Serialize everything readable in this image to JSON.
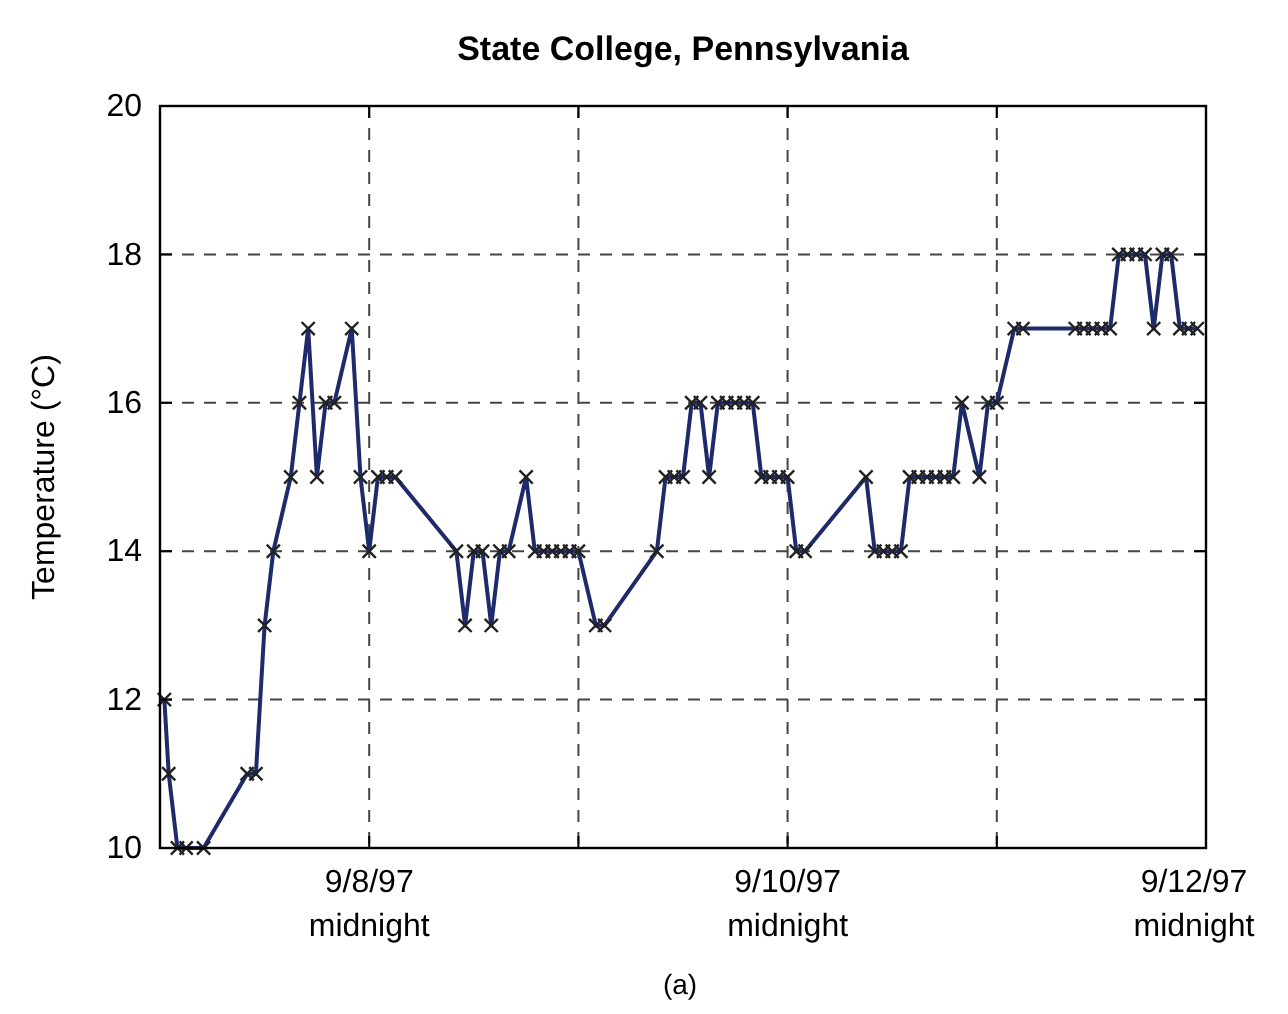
{
  "chart_data": {
    "type": "line",
    "title": "State College, Pennsylvania",
    "ylabel": "Temperature (°C)",
    "annotations": [
      "(a)"
    ],
    "xlim": [
      "1997-09-07T00:00",
      "1997-09-12T00:00"
    ],
    "xticks": [
      {
        "value": "1997-09-08T00:00",
        "label": "9/8/97\nmidnight"
      },
      {
        "value": "1997-09-09T00:00",
        "label": null
      },
      {
        "value": "1997-09-10T00:00",
        "label": "9/10/97\nmidnight"
      },
      {
        "value": "1997-09-11T00:00",
        "label": null
      },
      {
        "value": "1997-09-12T00:00",
        "label": "9/12/97\nmidnight"
      }
    ],
    "ylim": [
      10,
      20
    ],
    "yticks": [
      10,
      12,
      14,
      16,
      18,
      20
    ],
    "grid": true,
    "marker": "cross",
    "line_style": "solid",
    "series": [
      {
        "color": "#1f2a6b",
        "x": [
          "1997-09-07T00:30",
          "1997-09-07T01:00",
          "1997-09-07T02:00",
          "1997-09-07T03:00",
          "1997-09-07T05:00",
          "1997-09-07T10:00",
          "1997-09-07T11:00",
          "1997-09-07T12:00",
          "1997-09-07T13:00",
          "1997-09-07T15:00",
          "1997-09-07T16:00",
          "1997-09-07T17:00",
          "1997-09-07T18:00",
          "1997-09-07T19:00",
          "1997-09-07T20:00",
          "1997-09-07T22:00",
          "1997-09-07T23:00",
          "1997-09-08T00:00",
          "1997-09-08T01:00",
          "1997-09-08T02:00",
          "1997-09-08T03:00",
          "1997-09-08T10:00",
          "1997-09-08T11:00",
          "1997-09-08T12:00",
          "1997-09-08T13:00",
          "1997-09-08T14:00",
          "1997-09-08T15:00",
          "1997-09-08T16:00",
          "1997-09-08T18:00",
          "1997-09-08T19:00",
          "1997-09-08T20:00",
          "1997-09-08T21:00",
          "1997-09-08T22:00",
          "1997-09-08T23:00",
          "1997-09-09T00:00",
          "1997-09-09T02:00",
          "1997-09-09T03:00",
          "1997-09-09T09:00",
          "1997-09-09T10:00",
          "1997-09-09T11:00",
          "1997-09-09T12:00",
          "1997-09-09T13:00",
          "1997-09-09T14:00",
          "1997-09-09T15:00",
          "1997-09-09T16:00",
          "1997-09-09T17:00",
          "1997-09-09T18:00",
          "1997-09-09T19:00",
          "1997-09-09T20:00",
          "1997-09-09T21:00",
          "1997-09-09T22:00",
          "1997-09-09T23:00",
          "1997-09-10T00:00",
          "1997-09-10T01:00",
          "1997-09-10T02:00",
          "1997-09-10T09:00",
          "1997-09-10T10:00",
          "1997-09-10T11:00",
          "1997-09-10T12:00",
          "1997-09-10T13:00",
          "1997-09-10T14:00",
          "1997-09-10T15:00",
          "1997-09-10T16:00",
          "1997-09-10T17:00",
          "1997-09-10T18:00",
          "1997-09-10T19:00",
          "1997-09-10T20:00",
          "1997-09-10T22:00",
          "1997-09-10T23:00",
          "1997-09-11T00:00",
          "1997-09-11T02:00",
          "1997-09-11T03:00",
          "1997-09-11T09:00",
          "1997-09-11T10:00",
          "1997-09-11T11:00",
          "1997-09-11T12:00",
          "1997-09-11T13:00",
          "1997-09-11T14:00",
          "1997-09-11T15:00",
          "1997-09-11T16:00",
          "1997-09-11T17:00",
          "1997-09-11T18:00",
          "1997-09-11T19:00",
          "1997-09-11T20:00",
          "1997-09-11T21:00",
          "1997-09-11T22:00",
          "1997-09-11T23:00"
        ],
        "values": [
          12,
          11,
          10,
          10,
          10,
          11,
          11,
          13,
          14,
          15,
          16,
          17,
          15,
          16,
          16,
          17,
          15,
          14,
          15,
          15,
          15,
          14,
          13,
          14,
          14,
          13,
          14,
          14,
          15,
          14,
          14,
          14,
          14,
          14,
          14,
          13,
          13,
          14,
          15,
          15,
          15,
          16,
          16,
          15,
          16,
          16,
          16,
          16,
          16,
          15,
          15,
          15,
          15,
          14,
          14,
          15,
          14,
          14,
          14,
          14,
          15,
          15,
          15,
          15,
          15,
          15,
          16,
          15,
          16,
          16,
          17,
          17,
          17,
          17,
          17,
          17,
          17,
          18,
          18,
          18,
          18,
          17,
          18,
          18,
          17,
          17,
          17
        ]
      }
    ]
  }
}
